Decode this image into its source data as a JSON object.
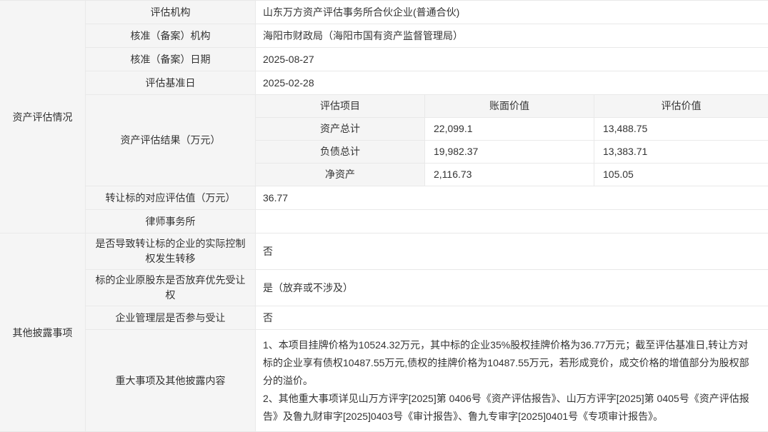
{
  "colors": {
    "label_bg": "#f5f5f5",
    "border": "#e9e9e9",
    "text": "#333333",
    "value_bg": "#ffffff"
  },
  "asset_section": {
    "group_label": "资产评估情况",
    "rows": {
      "agency": {
        "label": "评估机构",
        "value": "山东万方资产评估事务所合伙企业(普通合伙)"
      },
      "approval_agency": {
        "label": "核准（备案）机构",
        "value": "海阳市财政局（海阳市国有资产监督管理局）"
      },
      "approval_date": {
        "label": "核准（备案）日期",
        "value": "2025-08-27"
      },
      "base_date": {
        "label": "评估基准日",
        "value": "2025-02-28"
      },
      "result": {
        "label": "资产评估结果（万元）"
      },
      "transfer_value": {
        "label": "转让标的对应评估值（万元）",
        "value": "36.77"
      },
      "law_firm": {
        "label": "律师事务所",
        "value": ""
      }
    },
    "result_table": {
      "headers": [
        "评估项目",
        "账面价值",
        "评估价值"
      ],
      "rows": [
        {
          "item": "资产总计",
          "book_value": "22,099.1",
          "assessed_value": "13,488.75"
        },
        {
          "item": "负债总计",
          "book_value": "19,982.37",
          "assessed_value": "13,383.71"
        },
        {
          "item": "净资产",
          "book_value": "2,116.73",
          "assessed_value": "105.05"
        }
      ]
    }
  },
  "other_section": {
    "group_label": "其他披露事项",
    "rows": {
      "control_transfer": {
        "label": "是否导致转让标的企业的实际控制权发生转移",
        "value": "否"
      },
      "waiver_priority": {
        "label": "标的企业原股东是否放弃优先受让权",
        "value": "是（放弃或不涉及）"
      },
      "management_participate": {
        "label": "企业管理层是否参与受让",
        "value": "否"
      },
      "major_matters": {
        "label": "重大事项及其他披露内容",
        "paragraphs": [
          "1、本项目挂牌价格为10524.32万元，其中标的企业35%股权挂牌价格为36.77万元；截至评估基准日,转让方对标的企业享有债权10487.55万元,债权的挂牌价格为10487.55万元，若形成竞价，成交价格的增值部分为股权部分的溢价。",
          "2、其他重大事项详见山万方评字[2025]第 0406号《资产评估报告》、山万方评字[2025]第 0405号《资产评估报告》及鲁九财审字[2025]0403号《审计报告》、鲁九专审字[2025]0401号《专项审计报告》。"
        ]
      }
    }
  }
}
